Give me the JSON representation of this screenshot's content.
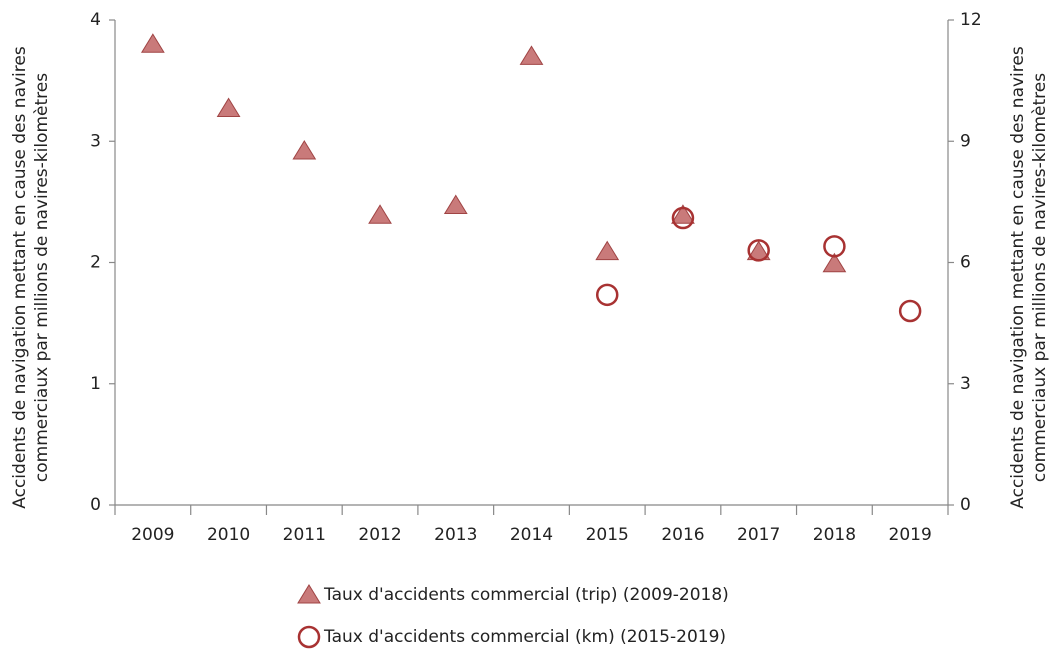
{
  "chart_data": {
    "type": "scatter",
    "categories": [
      "2009",
      "2010",
      "2011",
      "2012",
      "2013",
      "2014",
      "2015",
      "2016",
      "2017",
      "2018",
      "2019"
    ],
    "ylabel": [
      "Accidents de navigation mettant en cause des navires",
      "commerciaux par millions de navires-kilomètres"
    ],
    "y2label": [
      "Accidents de navigation mettant en cause des navires",
      "commerciaux par millions de navires-kilomètres"
    ],
    "ylim": [
      0,
      4
    ],
    "yticks": [
      0,
      1,
      2,
      3,
      4
    ],
    "y2lim": [
      0,
      12
    ],
    "y2ticks": [
      0,
      3,
      6,
      9,
      12
    ],
    "grid": false,
    "series": [
      {
        "name": "Taux d'accidents commercial (trip) (2009-2018)",
        "color": "#c97a7a",
        "marker": "triangle",
        "values": [
          3.8,
          3.27,
          2.92,
          2.39,
          2.47,
          3.7,
          2.09,
          2.39,
          2.09,
          1.99,
          null
        ]
      },
      {
        "name": "Taux d'accidents commercial (km) (2015-2019)",
        "color": "#a83232",
        "marker": "circle",
        "axis": "y2",
        "values": [
          null,
          null,
          null,
          null,
          null,
          null,
          5.2,
          7.1,
          6.3,
          6.4,
          4.8
        ]
      }
    ]
  }
}
